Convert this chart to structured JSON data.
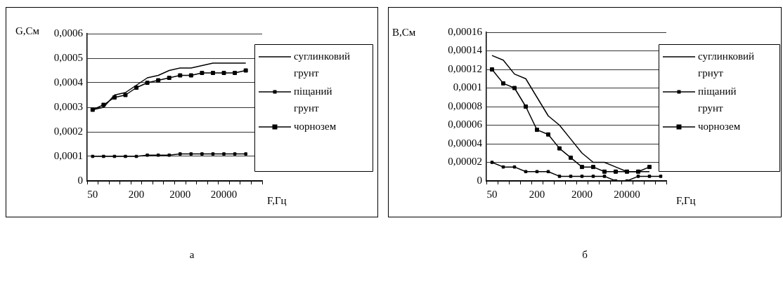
{
  "chart_data": [
    {
      "type": "line",
      "ylabel": "G,См",
      "xlabel": "F,Гц",
      "annotations": [
        "а"
      ],
      "categories": [
        "50",
        null,
        null,
        null,
        "200",
        null,
        null,
        null,
        "2000",
        null,
        null,
        null,
        "20000",
        null,
        null,
        null
      ],
      "series": [
        {
          "name": "суглинковий грунт",
          "color": "#000000",
          "marker": "none",
          "values": [
            0.00029,
            0.0003,
            0.00035,
            0.00036,
            0.00039,
            0.00042,
            0.00043,
            0.00045,
            0.00046,
            0.00046,
            0.00047,
            0.00048,
            0.00048,
            0.00048,
            0.00048,
            null
          ]
        },
        {
          "name": "піщаний грунт",
          "color": "#000000",
          "marker": "square",
          "values": [
            0.0001,
            0.0001,
            0.0001,
            0.0001,
            0.0001,
            0.000105,
            0.000105,
            0.000105,
            0.00011,
            0.00011,
            0.00011,
            0.00011,
            0.00011,
            0.00011,
            0.00011,
            null
          ]
        },
        {
          "name": "чорнозем",
          "color": "#000000",
          "marker": "square",
          "values": [
            0.00029,
            0.00031,
            0.00034,
            0.00035,
            0.00038,
            0.0004,
            0.00041,
            0.00042,
            0.00043,
            0.00043,
            0.00044,
            0.00044,
            0.00044,
            0.00044,
            0.00045,
            null
          ]
        }
      ],
      "ylim": [
        0,
        0.0006
      ],
      "yticks": [
        {
          "value": 0,
          "label": "0"
        },
        {
          "value": 0.0001,
          "label": "0,0001"
        },
        {
          "value": 0.0002,
          "label": "0,0002"
        },
        {
          "value": 0.0003,
          "label": "0,0003"
        },
        {
          "value": 0.0004,
          "label": "0,0004"
        },
        {
          "value": 0.0005,
          "label": "0,0005"
        },
        {
          "value": 0.0006,
          "label": "0,0006"
        }
      ],
      "grid": "y",
      "legend": "right"
    },
    {
      "type": "line",
      "ylabel": "В,См",
      "xlabel": "F,Гц",
      "annotations": [
        "б"
      ],
      "categories": [
        "50",
        null,
        null,
        null,
        "200",
        null,
        null,
        null,
        "2000",
        null,
        null,
        null,
        "20000",
        null,
        null,
        null
      ],
      "series": [
        {
          "name": "суглинковий грнут",
          "color": "#000000",
          "marker": "none",
          "values": [
            0.000135,
            0.00013,
            0.000115,
            0.00011,
            9e-05,
            7e-05,
            6e-05,
            4.5e-05,
            3e-05,
            2e-05,
            2e-05,
            1.5e-05,
            1e-05,
            1e-05,
            1e-05,
            null
          ]
        },
        {
          "name": "піщаний грунт",
          "color": "#000000",
          "marker": "square",
          "values": [
            2e-05,
            1.5e-05,
            1.5e-05,
            1e-05,
            1e-05,
            1e-05,
            5e-06,
            5e-06,
            5e-06,
            5e-06,
            5e-06,
            0,
            0,
            5e-06,
            5e-06,
            5e-06
          ]
        },
        {
          "name": "чорнозем",
          "color": "#000000",
          "marker": "square",
          "values": [
            0.00012,
            0.000105,
            0.0001,
            8e-05,
            5.5e-05,
            5e-05,
            3.5e-05,
            2.5e-05,
            1.5e-05,
            1.5e-05,
            1e-05,
            1e-05,
            1e-05,
            1e-05,
            1.5e-05,
            null
          ]
        }
      ],
      "ylim": [
        0,
        0.00016
      ],
      "yticks": [
        {
          "value": 0,
          "label": "0"
        },
        {
          "value": 2e-05,
          "label": "0,00002"
        },
        {
          "value": 4e-05,
          "label": "0,00004"
        },
        {
          "value": 6e-05,
          "label": "0,00006"
        },
        {
          "value": 8e-05,
          "label": "0,00008"
        },
        {
          "value": 0.0001,
          "label": "0,0001"
        },
        {
          "value": 0.00012,
          "label": "0,00012"
        },
        {
          "value": 0.00014,
          "label": "0,00014"
        },
        {
          "value": 0.00016,
          "label": "0,00016"
        }
      ],
      "grid": "y",
      "legend": "right"
    }
  ]
}
